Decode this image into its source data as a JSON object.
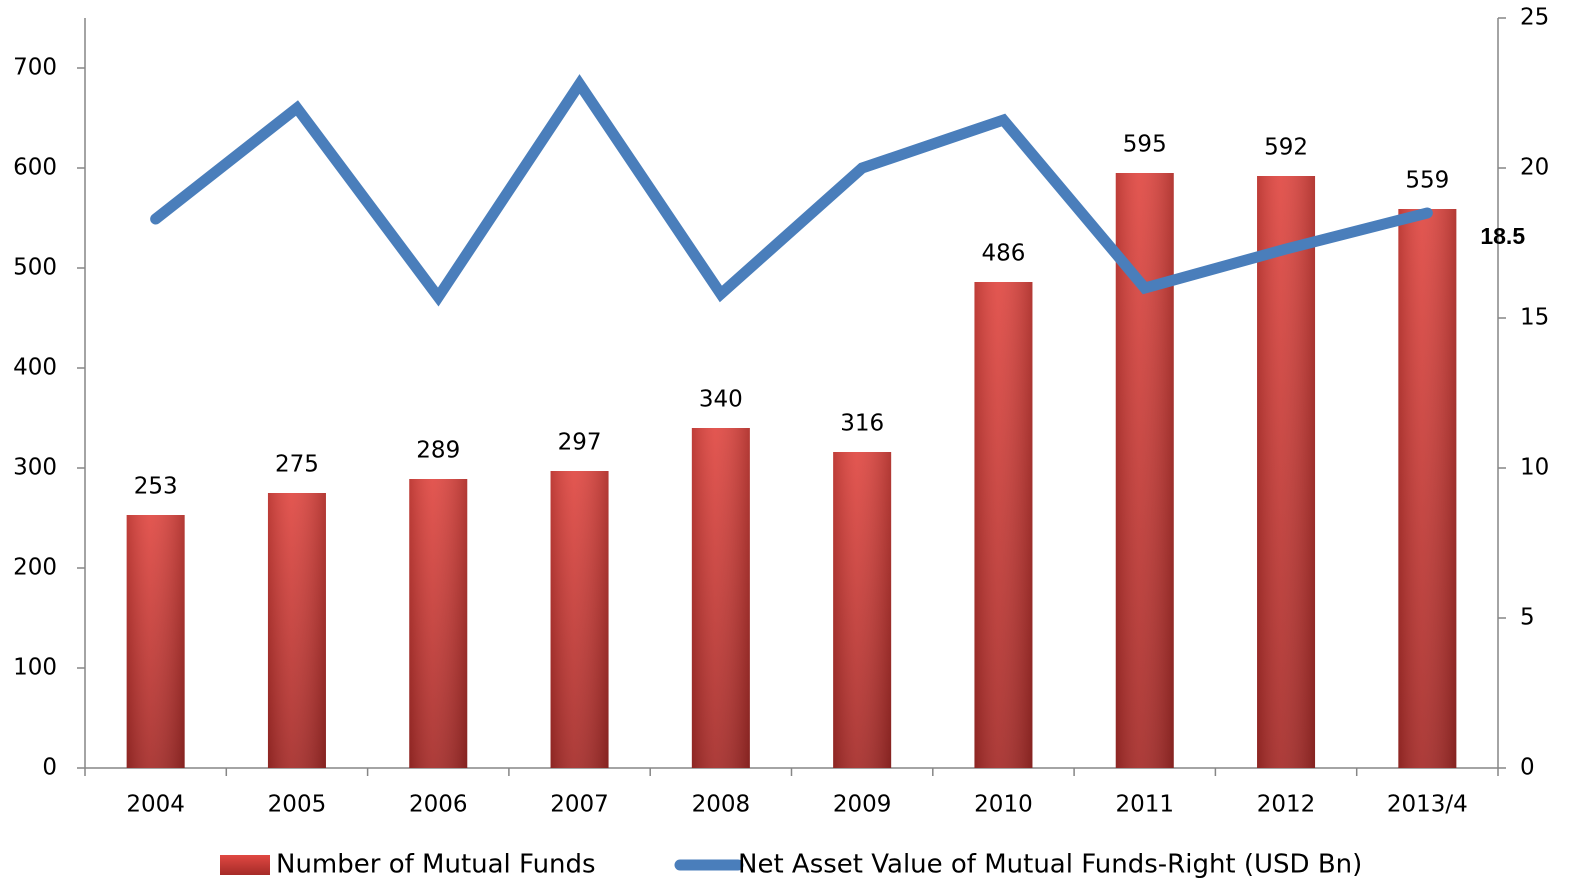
{
  "chart_data": {
    "type": "bar-line",
    "categories": [
      "2004",
      "2005",
      "2006",
      "2007",
      "2008",
      "2009",
      "2010",
      "2011",
      "2012",
      "2013/4"
    ],
    "series": [
      {
        "name": "Number of Mutual Funds",
        "color": "#c83a35",
        "type": "bar",
        "values": [
          253,
          275,
          289,
          297,
          340,
          316,
          486,
          595,
          592,
          559
        ]
      },
      {
        "name": "Net Asset Value of Mutual Funds-Right (USD Bn)",
        "color": "#4a7ebb",
        "type": "line",
        "axis": "y2",
        "values": [
          18.3,
          22.0,
          15.7,
          22.8,
          15.8,
          20.0,
          21.6,
          16.0,
          17.3,
          18.5
        ],
        "value_labels": [
          null,
          null,
          null,
          null,
          null,
          null,
          null,
          null,
          null,
          "18.5"
        ]
      }
    ],
    "ylim": [
      0,
      750
    ],
    "yticks": [
      0,
      100,
      200,
      300,
      400,
      500,
      600,
      700
    ],
    "y2lim": [
      0,
      25
    ],
    "y2ticks": [
      0,
      5,
      10,
      15,
      20,
      25
    ],
    "legend": "bottom"
  }
}
